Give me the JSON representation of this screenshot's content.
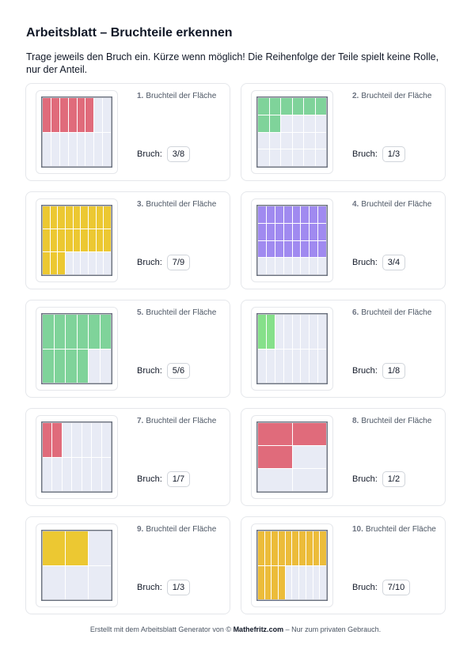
{
  "title": "Arbeitsblatt – Bruchteile erkennen",
  "instructions": "Trage jeweils den Bruch ein. Kürze wenn möglich! Die Reihenfolge der Teile spielt keine Rolle, nur der Anteil.",
  "answer_label": "Bruch:",
  "task_label": "Bruchteil der Fläche",
  "tasks": [
    {
      "number": "1.",
      "rows": 2,
      "cols": 8,
      "filled": 6,
      "color": "#e06b7b",
      "answer": "3/8"
    },
    {
      "number": "2.",
      "rows": 4,
      "cols": 6,
      "filled": 8,
      "color": "#7fd39a",
      "answer": "1/3"
    },
    {
      "number": "3.",
      "rows": 3,
      "cols": 9,
      "filled": 21,
      "color": "#ecc832",
      "answer": "7/9"
    },
    {
      "number": "4.",
      "rows": 4,
      "cols": 8,
      "filled": 24,
      "color": "#a08af0",
      "answer": "3/4"
    },
    {
      "number": "5.",
      "rows": 2,
      "cols": 6,
      "filled": 10,
      "color": "#7fd39a",
      "answer": "5/6"
    },
    {
      "number": "6.",
      "rows": 2,
      "cols": 8,
      "filled": 2,
      "color": "#86e08a",
      "answer": "1/8"
    },
    {
      "number": "7.",
      "rows": 2,
      "cols": 7,
      "filled": 2,
      "color": "#e06b7b",
      "answer": "1/7"
    },
    {
      "number": "8.",
      "rows": 3,
      "cols": 2,
      "filled": 3,
      "color": "#e06b7b",
      "answer": "1/2"
    },
    {
      "number": "9.",
      "rows": 2,
      "cols": 3,
      "filled": 2,
      "color": "#ecc832",
      "answer": "1/3"
    },
    {
      "number": "10.",
      "rows": 2,
      "cols": 10,
      "filled": 14,
      "color": "#ecbc3a",
      "answer": "7/10"
    }
  ],
  "footer": {
    "prefix": "Erstellt mit dem Arbeitsblatt Generator von ©",
    "brand": "Mathefritz.com",
    "suffix": "– Nur zum privaten Gebrauch."
  }
}
